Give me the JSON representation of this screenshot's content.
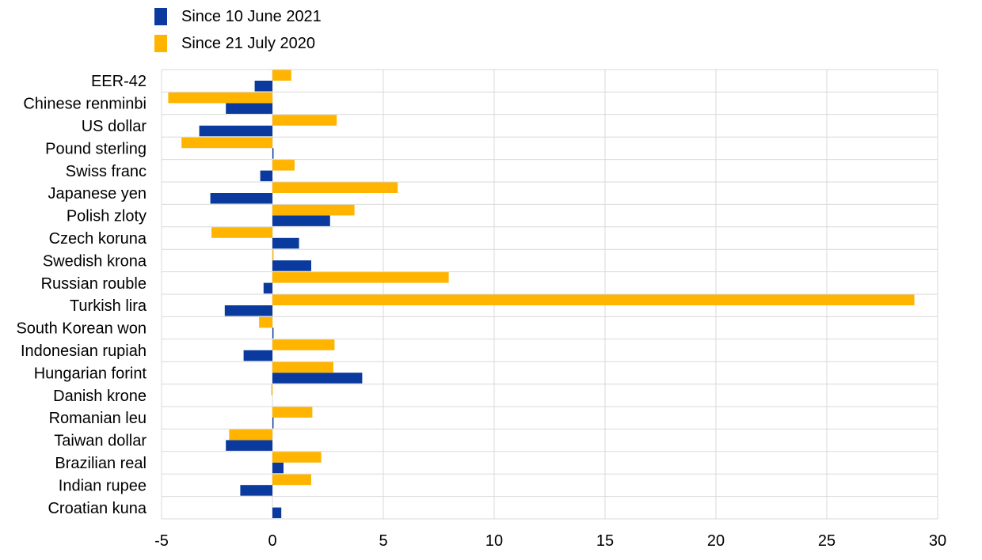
{
  "colors": {
    "series_1": "#0a3a9e",
    "series_2": "#ffb400",
    "grid": "#d9d9d9",
    "text": "#000000"
  },
  "legend": [
    {
      "label": "Since 10 June 2021",
      "color": "#0a3a9e"
    },
    {
      "label": "Since 21 July 2020",
      "color": "#ffb400"
    }
  ],
  "chart_data": {
    "type": "bar",
    "orientation": "horizontal",
    "title": "",
    "xlabel": "",
    "ylabel": "",
    "xlim": [
      -5,
      30
    ],
    "x_ticks": [
      -5,
      0,
      5,
      10,
      15,
      20,
      25,
      30
    ],
    "grid": true,
    "legend_position": "top-left",
    "categories": [
      "EER-42",
      "Chinese renminbi",
      "US dollar",
      "Pound sterling",
      "Swiss franc",
      "Japanese yen",
      "Polish zloty",
      "Czech koruna",
      "Swedish krona",
      "Russian rouble",
      "Turkish lira",
      "South Korean won",
      "Indonesian rupiah",
      "Hungarian forint",
      "Danish krone",
      "Romanian leu",
      "Taiwan dollar",
      "Brazilian real",
      "Indian rupee",
      "Croatian kuna"
    ],
    "series": [
      {
        "name": "Since 10 June 2021",
        "color": "#0a3a9e",
        "values": [
          -0.8,
          -2.1,
          -3.3,
          0.05,
          -0.55,
          -2.8,
          2.6,
          1.2,
          1.75,
          -0.4,
          -2.15,
          0.05,
          -1.3,
          4.05,
          0.0,
          0.05,
          -2.1,
          0.5,
          -1.45,
          0.4
        ]
      },
      {
        "name": "Since 21 July 2020",
        "color": "#ffb400",
        "values": [
          0.85,
          -4.7,
          2.9,
          -4.1,
          1.0,
          5.65,
          3.7,
          -2.75,
          0.05,
          7.95,
          28.95,
          -0.6,
          2.8,
          2.75,
          -0.05,
          1.8,
          -1.95,
          2.2,
          1.75,
          0.0
        ]
      }
    ]
  }
}
